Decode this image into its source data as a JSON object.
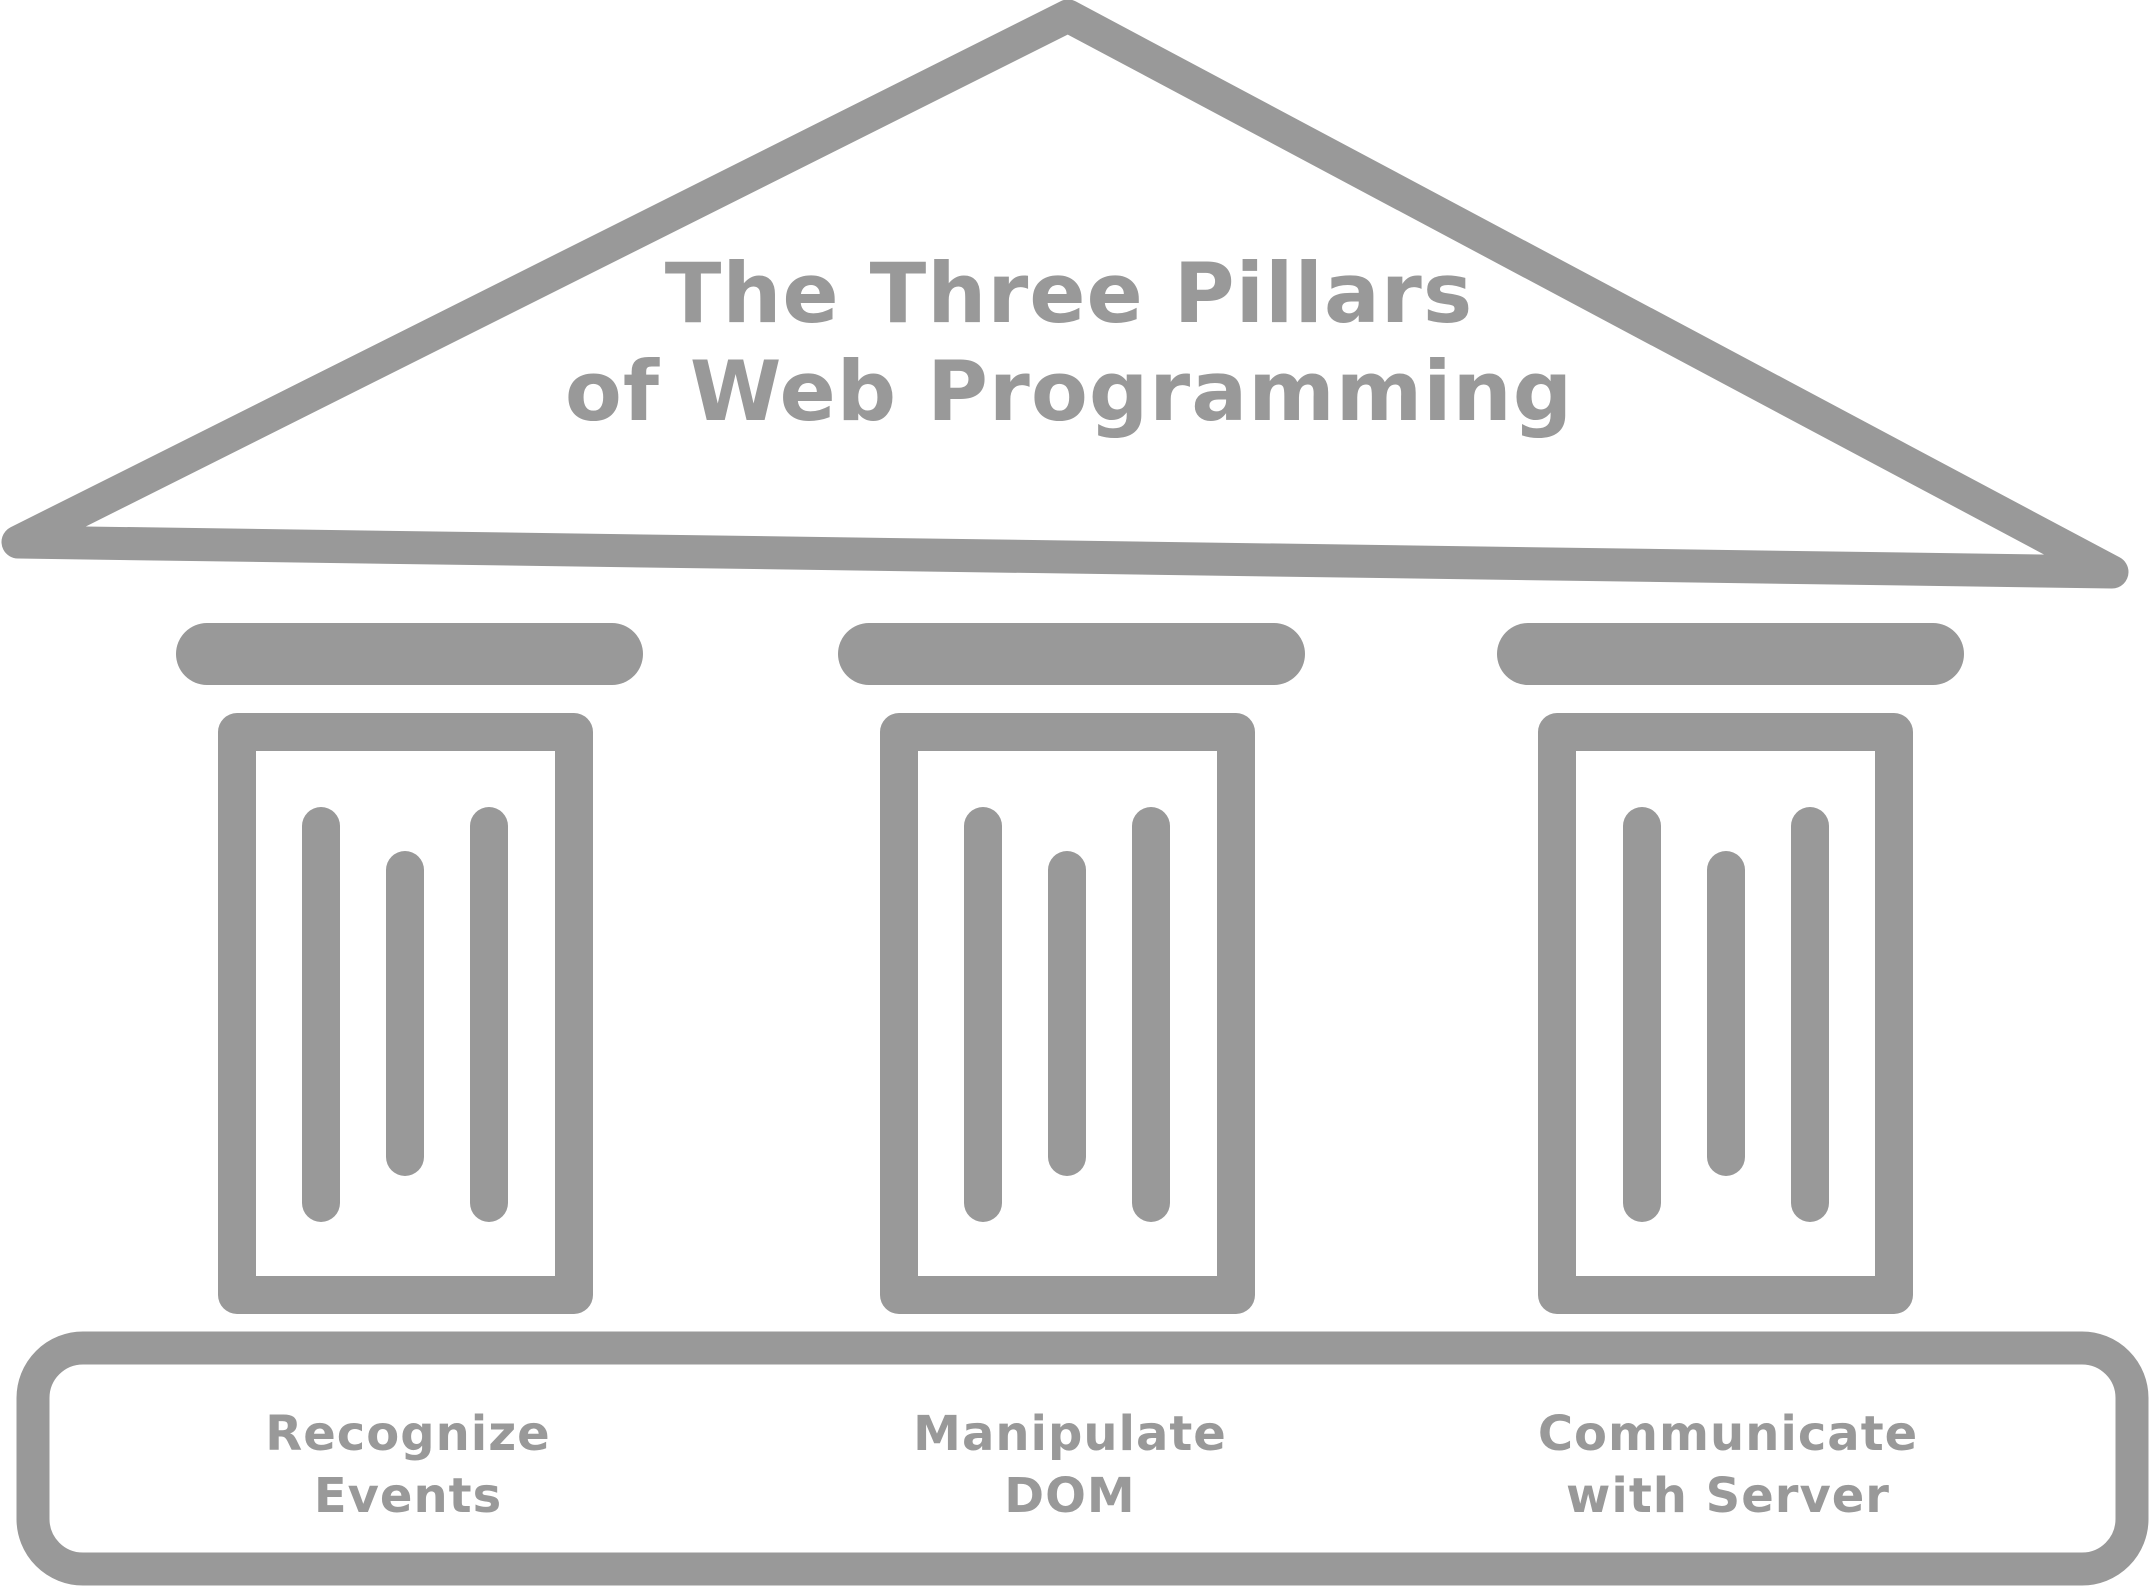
{
  "title": {
    "line1": "The Three Pillars",
    "line2": "of Web Programming"
  },
  "pillars": [
    {
      "label_line1": "Recognize",
      "label_line2": "Events"
    },
    {
      "label_line1": "Manipulate",
      "label_line2": "DOM"
    },
    {
      "label_line1": "Communicate",
      "label_line2": "with Server"
    }
  ],
  "colors": {
    "stroke": "#999999",
    "text": "#999999",
    "background": "#ffffff"
  }
}
